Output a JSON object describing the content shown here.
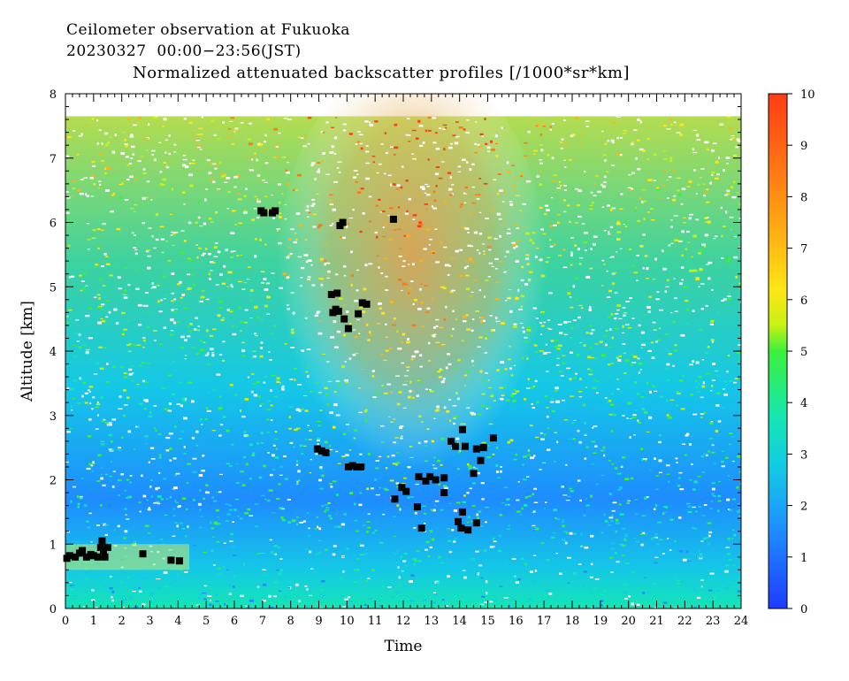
{
  "header": {
    "line1": "Ceilometer observation at Fukuoka",
    "line2": "20230327  00:00−23:56(JST)",
    "line3": "Normalized attenuated backscatter profiles [/1000*sr*km]"
  },
  "chart_data": {
    "type": "heatmap",
    "xlabel": "Time",
    "ylabel": "Altitude [km]",
    "xlim": [
      0,
      24
    ],
    "ylim": [
      0,
      8
    ],
    "x_ticks": [
      "0",
      "1",
      "2",
      "3",
      "4",
      "5",
      "6",
      "7",
      "8",
      "9",
      "10",
      "11",
      "12",
      "13",
      "14",
      "15",
      "16",
      "17",
      "18",
      "19",
      "20",
      "21",
      "22",
      "23",
      "24"
    ],
    "y_ticks": [
      "0",
      "1",
      "2",
      "3",
      "4",
      "5",
      "6",
      "7",
      "8"
    ],
    "data_top_km": 7.65,
    "colorbar": {
      "range": [
        0,
        10
      ],
      "ticks": [
        "0",
        "1",
        "2",
        "3",
        "4",
        "5",
        "6",
        "7",
        "8",
        "9",
        "10"
      ],
      "colors": [
        "#1e3cff",
        "#1e8cff",
        "#14c8e6",
        "#14e6b4",
        "#3cf03c",
        "#c8f014",
        "#ffe614",
        "#ffb414",
        "#ff7814",
        "#ff3c14"
      ]
    },
    "cloud_base_color": "#000000",
    "cloud_base_points": [
      [
        0.05,
        0.78
      ],
      [
        0.15,
        0.82
      ],
      [
        0.35,
        0.8
      ],
      [
        0.5,
        0.86
      ],
      [
        0.6,
        0.9
      ],
      [
        0.75,
        0.8
      ],
      [
        0.9,
        0.84
      ],
      [
        1.0,
        0.82
      ],
      [
        1.15,
        0.8
      ],
      [
        1.25,
        0.95
      ],
      [
        1.3,
        1.05
      ],
      [
        1.35,
        0.9
      ],
      [
        1.4,
        0.8
      ],
      [
        1.5,
        0.95
      ],
      [
        2.75,
        0.85
      ],
      [
        3.75,
        0.75
      ],
      [
        4.05,
        0.74
      ],
      [
        6.95,
        6.18
      ],
      [
        7.05,
        6.15
      ],
      [
        7.35,
        6.15
      ],
      [
        7.45,
        6.18
      ],
      [
        9.75,
        5.95
      ],
      [
        9.85,
        6.0
      ],
      [
        11.65,
        6.05
      ],
      [
        9.45,
        4.88
      ],
      [
        9.65,
        4.9
      ],
      [
        9.5,
        4.6
      ],
      [
        9.6,
        4.65
      ],
      [
        9.7,
        4.62
      ],
      [
        9.9,
        4.5
      ],
      [
        10.05,
        4.35
      ],
      [
        10.4,
        4.58
      ],
      [
        10.55,
        4.75
      ],
      [
        10.7,
        4.73
      ],
      [
        8.95,
        2.48
      ],
      [
        9.1,
        2.45
      ],
      [
        9.25,
        2.42
      ],
      [
        10.05,
        2.2
      ],
      [
        10.2,
        2.22
      ],
      [
        10.35,
        2.2
      ],
      [
        10.5,
        2.2
      ],
      [
        11.7,
        1.7
      ],
      [
        11.95,
        1.88
      ],
      [
        12.1,
        1.82
      ],
      [
        12.55,
        2.05
      ],
      [
        12.8,
        1.98
      ],
      [
        12.95,
        2.05
      ],
      [
        13.15,
        2.0
      ],
      [
        13.45,
        2.03
      ],
      [
        13.45,
        1.8
      ],
      [
        12.5,
        1.58
      ],
      [
        12.65,
        1.25
      ],
      [
        13.7,
        2.6
      ],
      [
        13.85,
        2.52
      ],
      [
        14.1,
        2.78
      ],
      [
        14.2,
        2.52
      ],
      [
        14.5,
        2.1
      ],
      [
        14.6,
        2.48
      ],
      [
        14.85,
        2.5
      ],
      [
        14.75,
        2.3
      ],
      [
        15.2,
        2.65
      ],
      [
        13.95,
        1.35
      ],
      [
        14.05,
        1.25
      ],
      [
        14.1,
        1.5
      ],
      [
        14.3,
        1.22
      ],
      [
        14.6,
        1.33
      ]
    ]
  }
}
